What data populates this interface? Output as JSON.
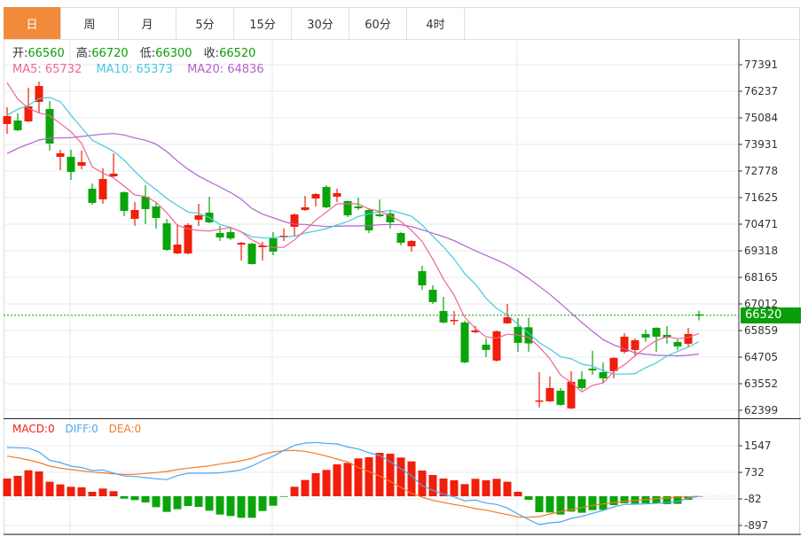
{
  "tabs": [
    {
      "label": "日",
      "active": true
    },
    {
      "label": "周"
    },
    {
      "label": "月"
    },
    {
      "label": "5分"
    },
    {
      "label": "15分"
    },
    {
      "label": "30分"
    },
    {
      "label": "60分"
    },
    {
      "label": "4时"
    }
  ],
  "info": {
    "open_label": "开:",
    "open": "66560",
    "high_label": "高:",
    "high": "66720",
    "low_label": "低:",
    "low": "66300",
    "close_label": "收:",
    "close": "66520"
  },
  "ma_legend": {
    "ma5": "MA5: 65732",
    "ma10": "MA10: 65373",
    "ma20": "MA20: 64836"
  },
  "macd_legend": {
    "macd": "MACD:0",
    "diff": "DIFF:0",
    "dea": "DEA:0"
  },
  "last_price": "66520",
  "colors": {
    "up": "#f01e0a",
    "down": "#0aa50a",
    "ma5": "#ef6592",
    "ma10": "#45c8de",
    "ma20": "#b461cc",
    "diff": "#4da6ef",
    "dea": "#f57a22",
    "active_tab": "#f28a3c",
    "last_price": "#0a9e0a"
  },
  "chart_data": [
    {
      "type": "candlestick",
      "price_ticks": [
        77391,
        76237,
        75084,
        73931,
        72778,
        71625,
        70471,
        69318,
        68165,
        67012,
        65859,
        64705,
        63552,
        62399
      ],
      "ylim": [
        62399,
        77391
      ],
      "grid": true,
      "candles": [
        [
          74816,
          75546,
          74393,
          75162
        ],
        [
          74970,
          75277,
          74510,
          74547
        ],
        [
          74931,
          76391,
          74900,
          75584
        ],
        [
          75777,
          76660,
          75277,
          76468
        ],
        [
          75469,
          75815,
          73663,
          73970
        ],
        [
          73394,
          73701,
          72817,
          73548
        ],
        [
          73394,
          73701,
          72395,
          72741
        ],
        [
          73010,
          73663,
          72856,
          73163
        ],
        [
          72010,
          72241,
          71319,
          71396
        ],
        [
          71549,
          72894,
          71357,
          72433
        ],
        [
          72548,
          73548,
          72510,
          72664
        ],
        [
          71857,
          71900,
          70819,
          71050
        ],
        [
          70704,
          71434,
          70396,
          71088
        ],
        [
          71665,
          72164,
          70473,
          71127
        ],
        [
          71242,
          71434,
          70281,
          70742
        ],
        [
          70512,
          70704,
          69320,
          69359
        ],
        [
          69205,
          70473,
          69167,
          69589
        ],
        [
          69205,
          70512,
          69167,
          70435
        ],
        [
          70665,
          71357,
          70396,
          70858
        ],
        [
          70973,
          71665,
          70520,
          70550
        ],
        [
          70089,
          70396,
          69743,
          69897
        ],
        [
          70127,
          70319,
          69781,
          69858
        ],
        [
          69589,
          69700,
          68898,
          69666
        ],
        [
          69628,
          69660,
          68720,
          68744
        ],
        [
          69474,
          69705,
          68898,
          69551
        ],
        [
          69858,
          70127,
          69128,
          69282
        ],
        [
          69897,
          70281,
          69743,
          69974
        ],
        [
          70358,
          70930,
          69935,
          70896
        ],
        [
          71088,
          71703,
          71050,
          71203
        ],
        [
          71588,
          71819,
          71242,
          71780
        ],
        [
          72087,
          72164,
          71165,
          71203
        ],
        [
          71665,
          72010,
          71434,
          71819
        ],
        [
          71472,
          71500,
          70781,
          70858
        ],
        [
          71242,
          71626,
          71088,
          71165
        ],
        [
          71088,
          71165,
          70089,
          70204
        ],
        [
          70896,
          71549,
          70781,
          70819
        ],
        [
          70935,
          71088,
          70281,
          70550
        ],
        [
          70089,
          70127,
          69551,
          69666
        ],
        [
          69513,
          69780,
          69282,
          69743
        ],
        [
          68436,
          68667,
          67629,
          67822
        ],
        [
          67629,
          67822,
          67014,
          67091
        ],
        [
          66707,
          67322,
          66170,
          66207
        ],
        [
          66284,
          66707,
          66092,
          66322
        ],
        [
          66207,
          66284,
          64440,
          64478
        ],
        [
          65785,
          66054,
          65750,
          65862
        ],
        [
          65247,
          65516,
          64709,
          65016
        ],
        [
          64555,
          65860,
          64517,
          65823
        ],
        [
          66170,
          67014,
          66150,
          66438
        ],
        [
          66015,
          66400,
          64939,
          65324
        ],
        [
          66000,
          66420,
          64930,
          65300
        ],
        [
          62787,
          64055,
          62518,
          62826
        ],
        [
          62787,
          63864,
          62760,
          63364
        ],
        [
          63248,
          63364,
          62600,
          62633
        ],
        [
          62480,
          64094,
          62450,
          63633
        ],
        [
          63748,
          64094,
          63287,
          63364
        ],
        [
          64209,
          64978,
          63940,
          64132
        ],
        [
          64055,
          64478,
          63594,
          63786
        ],
        [
          64094,
          64700,
          63786,
          64670
        ],
        [
          64939,
          65747,
          64862,
          65593
        ],
        [
          65016,
          65516,
          64747,
          65439
        ],
        [
          65708,
          65900,
          65362,
          65554
        ],
        [
          65977,
          66000,
          64939,
          65593
        ],
        [
          65670,
          66054,
          65285,
          65554
        ],
        [
          65362,
          65477,
          65016,
          65170
        ],
        [
          65285,
          65977,
          65170,
          65708
        ],
        [
          66560,
          66720,
          66300,
          66520
        ]
      ],
      "ma5": [
        76610,
        75903,
        75496,
        75304,
        75173,
        74843,
        74481,
        73982,
        72960,
        72691,
        72483,
        72126,
        71741,
        71676,
        71422,
        70973,
        70423,
        70269,
        70204,
        70177,
        70254,
        70331,
        70139,
        69793,
        69562,
        69463,
        69463,
        69793,
        70204,
        70654,
        71000,
        71357,
        71357,
        71357,
        71127,
        71038,
        70846,
        70588,
        70204,
        69716,
        68948,
        68091,
        67387,
        66426,
        65950,
        65581,
        65527,
        65696,
        65658,
        65566,
        65143,
        64632,
        63929,
        63606,
        63198,
        63479,
        63583,
        64082,
        64374,
        64759,
        65120,
        65427,
        65593,
        65504,
        65554,
        65732
      ],
      "ma10": [
        75200,
        75458,
        75623,
        75919,
        75969,
        75788,
        75200,
        74662,
        74113,
        73882,
        73636,
        73252,
        72767,
        72318,
        71972,
        71588,
        71292,
        71000,
        70946,
        70754,
        70462,
        70331,
        70139,
        69924,
        69885,
        69885,
        69924,
        69947,
        70089,
        70177,
        70281,
        70435,
        70588,
        70807,
        70923,
        71011,
        71077,
        70954,
        70819,
        70435,
        69947,
        69486,
        68963,
        68321,
        67871,
        67257,
        66811,
        66526,
        66131,
        65746,
        65335,
        65055,
        64720,
        64632,
        64401,
        64313,
        64121,
        63967,
        63967,
        63990,
        64248,
        64451,
        64759,
        64951,
        65143,
        65373
      ],
      "ma20": [
        73536,
        73767,
        73943,
        74124,
        74201,
        74212,
        74228,
        74278,
        74328,
        74382,
        74405,
        74343,
        74212,
        74113,
        73943,
        73624,
        73213,
        72856,
        72560,
        72318,
        72087,
        71845,
        71561,
        71153,
        70907,
        70754,
        70588,
        70473,
        70462,
        70408,
        70369,
        70385,
        70396,
        70396,
        70408,
        70446,
        70462,
        70446,
        70369,
        70231,
        70078,
        69935,
        69755,
        69539,
        69320,
        69117,
        68924,
        68705,
        68436,
        68118,
        67772,
        67426,
        67026,
        66619,
        66207,
        65823,
        65466,
        65235,
        65066,
        64889,
        64824,
        64786,
        64774,
        64759,
        64786,
        64836
      ],
      "last": 66520
    },
    {
      "type": "macd",
      "ticks": [
        1547,
        732,
        -82,
        -897
      ],
      "ylim": [
        -1000,
        1800
      ],
      "histogram": [
        543,
        625,
        797,
        761,
        444,
        362,
        290,
        272,
        136,
        236,
        154,
        -72,
        -118,
        -190,
        -335,
        -480,
        -398,
        -299,
        -326,
        -444,
        -562,
        -607,
        -661,
        -661,
        -453,
        -290,
        -18,
        290,
        498,
        706,
        806,
        978,
        1023,
        1159,
        1196,
        1331,
        1304,
        1187,
        1069,
        788,
        652,
        543,
        489,
        371,
        534,
        489,
        534,
        444,
        136,
        -109,
        -489,
        -498,
        -562,
        -471,
        -507,
        -426,
        -417,
        -272,
        -217,
        -226,
        -217,
        -217,
        -245,
        -236,
        -109,
        0
      ],
      "diff": [
        1494,
        1485,
        1476,
        1359,
        1105,
        1032,
        924,
        879,
        788,
        806,
        706,
        625,
        607,
        571,
        534,
        507,
        634,
        706,
        706,
        706,
        716,
        761,
        806,
        924,
        1087,
        1232,
        1404,
        1558,
        1630,
        1648,
        1621,
        1603,
        1512,
        1449,
        1331,
        1250,
        1060,
        842,
        634,
        317,
        181,
        63,
        -18,
        -145,
        -118,
        -208,
        -254,
        -362,
        -543,
        -716,
        -869,
        -815,
        -788,
        -679,
        -616,
        -525,
        -435,
        -326,
        -254,
        -245,
        -236,
        -217,
        -199,
        -163,
        -63,
        0
      ],
      "dea": [
        1232,
        1177,
        1114,
        1032,
        924,
        860,
        815,
        779,
        743,
        716,
        688,
        670,
        670,
        697,
        725,
        761,
        815,
        860,
        897,
        933,
        987,
        1032,
        1087,
        1159,
        1286,
        1359,
        1395,
        1404,
        1377,
        1313,
        1232,
        1141,
        1051,
        879,
        761,
        616,
        453,
        272,
        91,
        -27,
        -127,
        -190,
        -254,
        -308,
        -380,
        -426,
        -498,
        -562,
        -634,
        -643,
        -625,
        -543,
        -471,
        -408,
        -344,
        -281,
        -236,
        -190,
        -163,
        -127,
        -100,
        -72,
        -54,
        -27,
        -18,
        0
      ]
    }
  ]
}
